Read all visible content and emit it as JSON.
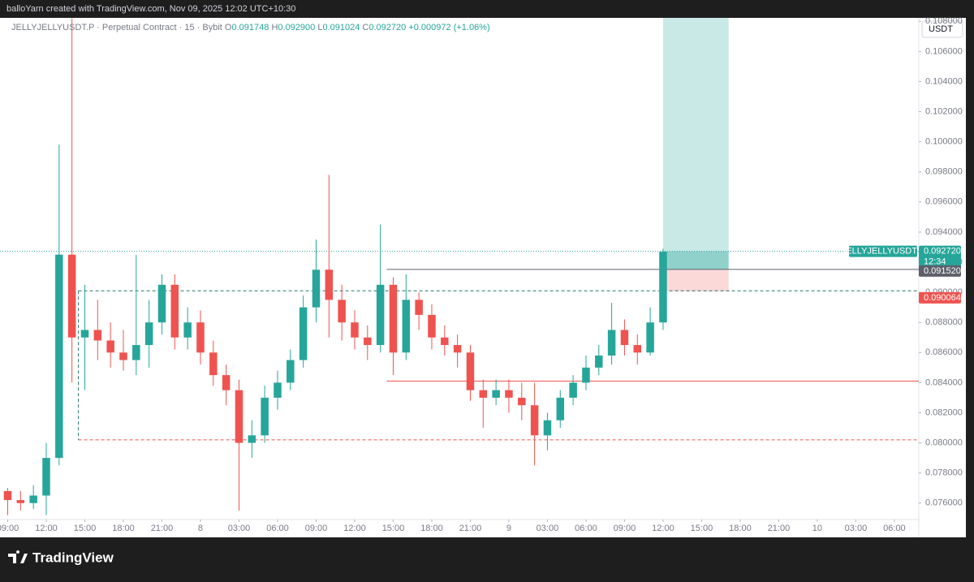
{
  "header": {
    "author_line": "balloYarn created with TradingView.com, Nov 09, 2025 12:02 UTC+10:30",
    "logo": "TradingView"
  },
  "chart_data": {
    "type": "candlestick",
    "symbol": "JELLYJELLYUSDT.P",
    "legend_text": "· Perpetual Contract · 15 · Bybit",
    "legend_values": [
      {
        "label": "O",
        "value": "0.091748"
      },
      {
        "label": "H",
        "value": "0.092900"
      },
      {
        "label": "L",
        "value": "0.091024"
      },
      {
        "label": "C",
        "value": "0.092720"
      },
      {
        "label": "",
        "value": "+0.000972 (+1.06%)"
      }
    ],
    "currency": "USDT",
    "up_color": "#26a69a",
    "down_color": "#ef5350",
    "x": [
      -15,
      -14,
      -13,
      -12,
      -11,
      -10,
      -9,
      -8,
      -7,
      -6,
      -5,
      -4,
      -3,
      -2,
      -1,
      0,
      1,
      2,
      3,
      4,
      5,
      6,
      7,
      8,
      9,
      10,
      11,
      12,
      13,
      14,
      15,
      16,
      17,
      18,
      19,
      20,
      21,
      22,
      23,
      24,
      25,
      26,
      27,
      28,
      29,
      30,
      31,
      32,
      33,
      34,
      35,
      36
    ],
    "open": [
      0.0768,
      0.0762,
      0.076,
      0.0765,
      0.079,
      0.0925,
      0.087,
      0.0875,
      0.0868,
      0.086,
      0.0855,
      0.0865,
      0.088,
      0.0905,
      0.087,
      0.088,
      0.086,
      0.0845,
      0.0835,
      0.08,
      0.0805,
      0.083,
      0.084,
      0.0855,
      0.089,
      0.0915,
      0.0895,
      0.088,
      0.087,
      0.0865,
      0.0905,
      0.086,
      0.0895,
      0.0885,
      0.087,
      0.0865,
      0.086,
      0.0835,
      0.083,
      0.0835,
      0.083,
      0.0825,
      0.0805,
      0.0815,
      0.083,
      0.084,
      0.085,
      0.0858,
      0.0875,
      0.0865,
      0.086,
      0.088
    ],
    "high": [
      0.077,
      0.0768,
      0.0772,
      0.08,
      0.0998,
      0.1082,
      0.0905,
      0.0895,
      0.088,
      0.0875,
      0.0925,
      0.0895,
      0.0912,
      0.0912,
      0.089,
      0.0888,
      0.0868,
      0.0852,
      0.0842,
      0.0815,
      0.0838,
      0.0848,
      0.0862,
      0.0898,
      0.0935,
      0.0978,
      0.0905,
      0.0888,
      0.0878,
      0.0945,
      0.091,
      0.0912,
      0.09,
      0.0892,
      0.0878,
      0.0872,
      0.0865,
      0.0842,
      0.0842,
      0.0842,
      0.084,
      0.084,
      0.082,
      0.0835,
      0.0845,
      0.0858,
      0.0865,
      0.0893,
      0.0882,
      0.0872,
      0.089,
      0.0929
    ],
    "low": [
      0.0752,
      0.0755,
      0.0756,
      0.0752,
      0.0785,
      0.084,
      0.0835,
      0.0855,
      0.085,
      0.0848,
      0.0845,
      0.085,
      0.0872,
      0.0862,
      0.0862,
      0.0852,
      0.0838,
      0.0825,
      0.0755,
      0.079,
      0.08,
      0.0822,
      0.0835,
      0.085,
      0.088,
      0.087,
      0.0868,
      0.0862,
      0.0855,
      0.086,
      0.0845,
      0.0855,
      0.0875,
      0.0862,
      0.0858,
      0.085,
      0.0828,
      0.081,
      0.0825,
      0.082,
      0.0815,
      0.0785,
      0.0795,
      0.081,
      0.0825,
      0.0835,
      0.0845,
      0.0852,
      0.0858,
      0.0852,
      0.0858,
      0.0875
    ],
    "close": [
      0.0762,
      0.076,
      0.0765,
      0.079,
      0.0925,
      0.087,
      0.0875,
      0.0868,
      0.086,
      0.0855,
      0.0865,
      0.088,
      0.0905,
      0.087,
      0.088,
      0.086,
      0.0845,
      0.0835,
      0.08,
      0.0805,
      0.083,
      0.084,
      0.0855,
      0.089,
      0.0915,
      0.0895,
      0.088,
      0.087,
      0.0865,
      0.0905,
      0.086,
      0.0895,
      0.0885,
      0.087,
      0.0865,
      0.086,
      0.0835,
      0.083,
      0.0835,
      0.083,
      0.0825,
      0.0805,
      0.0815,
      0.083,
      0.084,
      0.085,
      0.0858,
      0.0875,
      0.0865,
      0.086,
      0.088,
      0.0927
    ],
    "xlim": [
      -15.6,
      55.9
    ],
    "ylim": [
      0.07491,
      0.10823
    ],
    "xticks": [
      {
        "value": -15,
        "label": "09:00"
      },
      {
        "value": -12,
        "label": "12:00"
      },
      {
        "value": -9,
        "label": "15:00"
      },
      {
        "value": -6,
        "label": "18:00"
      },
      {
        "value": -3,
        "label": "21:00"
      },
      {
        "value": 0,
        "label": "8"
      },
      {
        "value": 3,
        "label": "03:00"
      },
      {
        "value": 6,
        "label": "06:00"
      },
      {
        "value": 9,
        "label": "09:00"
      },
      {
        "value": 12,
        "label": "12:00"
      },
      {
        "value": 15,
        "label": "15:00"
      },
      {
        "value": 18,
        "label": "18:00"
      },
      {
        "value": 21,
        "label": "21:00"
      },
      {
        "value": 24,
        "label": "9"
      },
      {
        "value": 27,
        "label": "03:00"
      },
      {
        "value": 30,
        "label": "06:00"
      },
      {
        "value": 33,
        "label": "09:00"
      },
      {
        "value": 36,
        "label": "12:00"
      },
      {
        "value": 39,
        "label": "15:00"
      },
      {
        "value": 42,
        "label": "18:00"
      },
      {
        "value": 45,
        "label": "21:00"
      },
      {
        "value": 48,
        "label": "10"
      },
      {
        "value": 51,
        "label": "03:00"
      },
      {
        "value": 54,
        "label": "06:00"
      }
    ],
    "yticks": [
      {
        "value": 0.108,
        "label": "0.108000"
      },
      {
        "value": 0.106,
        "label": "0.106000"
      },
      {
        "value": 0.104,
        "label": "0.104000"
      },
      {
        "value": 0.102,
        "label": "0.102000"
      },
      {
        "value": 0.1,
        "label": "0.100000"
      },
      {
        "value": 0.098,
        "label": "0.098000"
      },
      {
        "value": 0.096,
        "label": "0.096000"
      },
      {
        "value": 0.094,
        "label": "0.094000"
      },
      {
        "value": 0.092,
        "label": "0.092000"
      },
      {
        "value": 0.09,
        "label": "0.090000"
      },
      {
        "value": 0.088,
        "label": "0.088000"
      },
      {
        "value": 0.086,
        "label": "0.086000"
      },
      {
        "value": 0.084,
        "label": "0.084000"
      },
      {
        "value": 0.082,
        "label": "0.082000"
      },
      {
        "value": 0.08,
        "label": "0.080000"
      },
      {
        "value": 0.078,
        "label": "0.078000"
      },
      {
        "value": 0.076,
        "label": "0.076000"
      }
    ],
    "last_price": {
      "value": 0.09272,
      "label": "0.092720"
    },
    "countdown": "12:34",
    "position": {
      "from": 36,
      "to": 41.1,
      "entry": {
        "value": 0.09152,
        "label": "0.091520"
      },
      "stop": {
        "value": 0.090064,
        "label": "0.090064"
      },
      "target": 0.1085
    },
    "levels": [
      {
        "value": 0.0901,
        "from": -9.5,
        "color": "#26786e",
        "style": "dashed"
      },
      {
        "value": 0.0802,
        "from": -9.5,
        "color": "#ef5350",
        "style": "dashed"
      },
      {
        "value": 0.0841,
        "from": 14.5,
        "color": "#ef5350",
        "style": "solid"
      }
    ]
  }
}
